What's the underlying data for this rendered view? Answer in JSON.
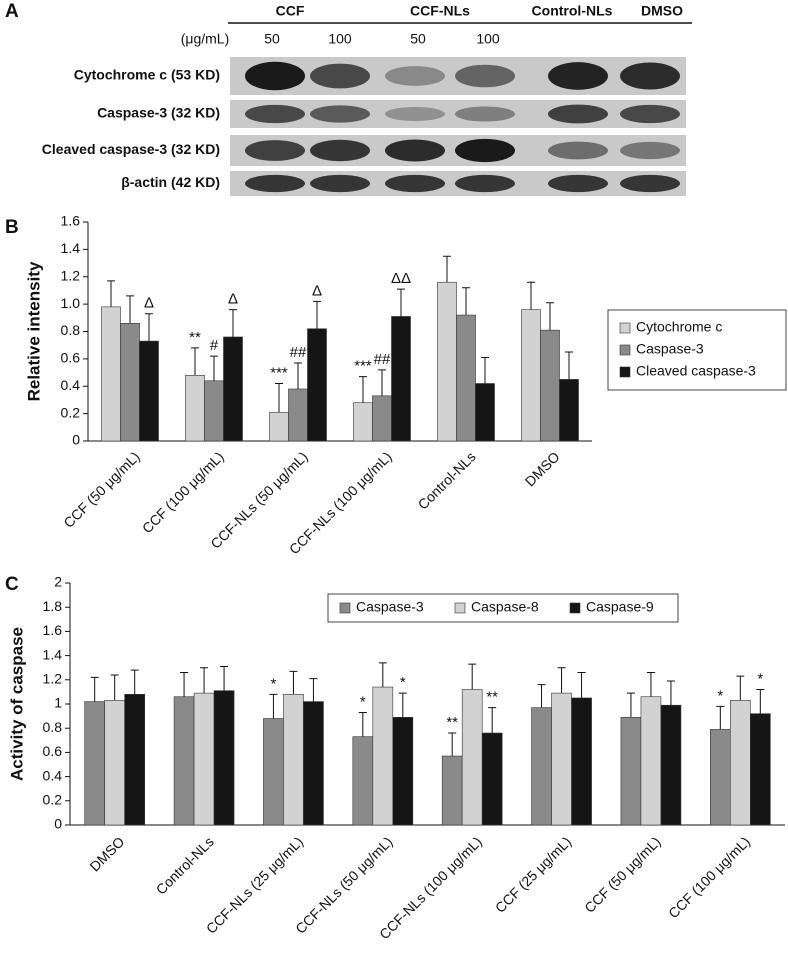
{
  "blot": {
    "label": "A",
    "groups": [
      "CCF",
      "CCF-NLs",
      "Control-NLs",
      "DMSO"
    ],
    "unit": "(μg/mL)",
    "doses": [
      "50",
      "100",
      "50",
      "100"
    ],
    "rows": [
      "Cytochrome c (53 KD)",
      "Caspase-3 (32 KD)",
      "Cleaved caspase-3 (32 KD)",
      "β-actin (42 KD)"
    ]
  },
  "chart_data": [
    {
      "type": "bar",
      "label": "B",
      "y_label": "Relative intensity",
      "categories": [
        "CCF (50 μg/mL)",
        "CCF (100 μg/mL)",
        "CCF-NLs (50 μg/mL)",
        "CCF-NLs (100 μg/mL)",
        "Control-NLs",
        "DMSO"
      ],
      "series": [
        {
          "name": "Cytochrome c",
          "color": "#d2d2d2",
          "values": [
            0.98,
            0.48,
            0.21,
            0.28,
            1.16,
            0.96
          ],
          "errors": [
            0.19,
            0.2,
            0.21,
            0.19,
            0.19,
            0.2
          ],
          "annotations": [
            null,
            "**",
            "***",
            "***",
            null,
            null
          ]
        },
        {
          "name": "Caspase-3",
          "color": "#8a8a8a",
          "values": [
            0.86,
            0.44,
            0.38,
            0.33,
            0.92,
            0.81
          ],
          "errors": [
            0.2,
            0.18,
            0.19,
            0.19,
            0.2,
            0.2
          ],
          "annotations": [
            null,
            "#",
            "##",
            "##",
            null,
            null
          ]
        },
        {
          "name": "Cleaved caspase-3",
          "color": "#151515",
          "values": [
            0.73,
            0.76,
            0.82,
            0.91,
            0.42,
            0.45
          ],
          "errors": [
            0.2,
            0.2,
            0.2,
            0.2,
            0.19,
            0.2
          ],
          "annotations": [
            "Δ",
            "Δ",
            "Δ",
            "ΔΔ",
            null,
            null
          ]
        }
      ],
      "ylim": [
        0,
        1.6
      ],
      "yticks": [
        0,
        0.2,
        0.4,
        0.6,
        0.8,
        {
          "value": 1,
          "label": "1.0"
        },
        1.2,
        1.4,
        1.6
      ],
      "legend": "right"
    },
    {
      "type": "bar",
      "label": "C",
      "y_label": "Activity of caspase",
      "categories": [
        "DMSO",
        "Control-NLs",
        "CCF-NLs (25 μg/mL)",
        "CCF-NLs (50 μg/mL)",
        "CCF-NLs (100 μg/mL)",
        "CCF (25 μg/mL)",
        "CCF (50 μg/mL)",
        "CCF (100 μg/mL)"
      ],
      "series": [
        {
          "name": "Caspase-3",
          "color": "#8a8a8a",
          "values": [
            1.02,
            1.06,
            0.88,
            0.73,
            0.57,
            0.97,
            0.89,
            0.79
          ],
          "errors": [
            0.2,
            0.2,
            0.2,
            0.2,
            0.19,
            0.19,
            0.2,
            0.19
          ],
          "annotations": [
            null,
            null,
            "*",
            "*",
            "**",
            null,
            null,
            "*"
          ]
        },
        {
          "name": "Caspase-8",
          "color": "#d2d2d2",
          "values": [
            1.03,
            1.09,
            1.08,
            1.14,
            1.12,
            1.09,
            1.06,
            1.03
          ],
          "errors": [
            0.21,
            0.21,
            0.19,
            0.2,
            0.21,
            0.21,
            0.2,
            0.2
          ],
          "annotations": [
            null,
            null,
            null,
            null,
            null,
            null,
            null,
            null
          ]
        },
        {
          "name": "Caspase-9",
          "color": "#151515",
          "values": [
            1.08,
            1.11,
            1.02,
            0.89,
            0.76,
            1.05,
            0.99,
            0.92
          ],
          "errors": [
            0.2,
            0.2,
            0.19,
            0.2,
            0.21,
            0.21,
            0.2,
            0.2
          ],
          "annotations": [
            null,
            null,
            null,
            "*",
            "**",
            null,
            null,
            "*"
          ]
        }
      ],
      "ylim": [
        0,
        2
      ],
      "yticks": [
        0,
        0.2,
        0.4,
        0.6,
        0.8,
        1,
        1.2,
        1.4,
        1.6,
        1.8,
        2
      ],
      "legend": "top"
    }
  ]
}
